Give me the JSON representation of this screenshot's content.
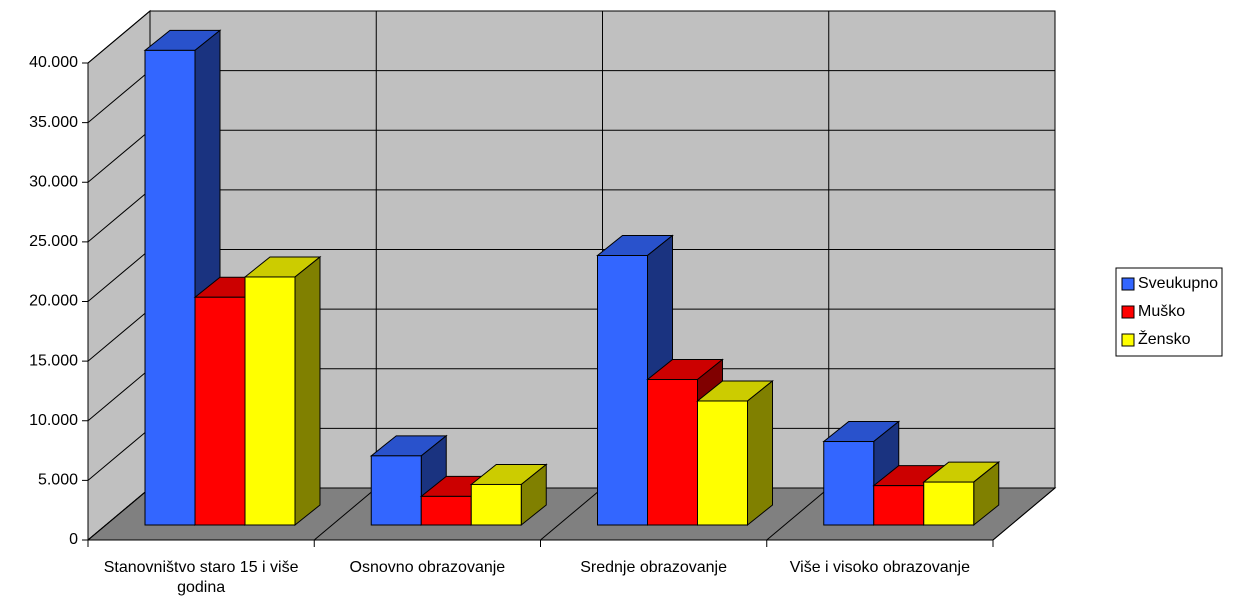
{
  "chart_data": {
    "type": "bar3d",
    "categories": [
      "Stanovništvo staro 15 i više godina",
      "Osnovno obrazovanje",
      "Srednje obrazovanje",
      "Više i visoko obrazovanje"
    ],
    "series": [
      {
        "name": "Sveukupno",
        "color": "#3366ff",
        "values": [
          39800,
          5800,
          22600,
          7000
        ]
      },
      {
        "name": "Muško",
        "color": "#ff0000",
        "values": [
          19100,
          2400,
          12200,
          3300
        ]
      },
      {
        "name": "Žensko",
        "color": "#ffff00",
        "values": [
          20800,
          3400,
          10400,
          3600
        ]
      }
    ],
    "ylim": [
      0,
      40000
    ],
    "yticks": [
      0,
      {
        "value": 5000,
        "label": "5.000"
      },
      {
        "value": 10000,
        "label": "10.000"
      },
      {
        "value": 15000,
        "label": "15.000"
      },
      {
        "value": 20000,
        "label": "20.000"
      },
      {
        "value": 25000,
        "label": "25.000"
      },
      {
        "value": 30000,
        "label": "30.000"
      },
      {
        "value": 35000,
        "label": "35.000"
      },
      {
        "value": 40000,
        "label": "40.000"
      }
    ],
    "grid": true,
    "legend": "right"
  }
}
